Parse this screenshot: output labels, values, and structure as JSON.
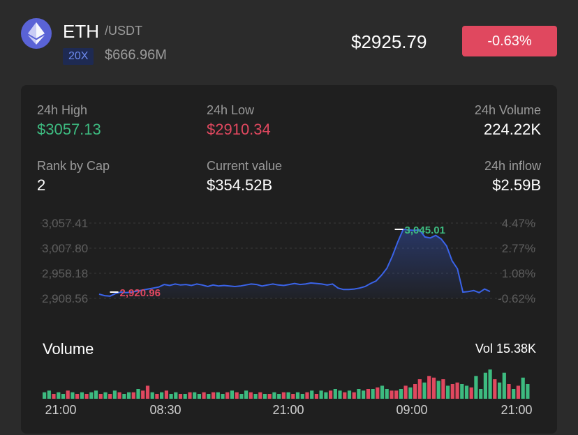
{
  "header": {
    "symbol": "ETH",
    "quote": "/USDT",
    "leverage": "20X",
    "market_cap": "$666.96M",
    "price": "$2925.79",
    "change": "-0.63%",
    "icon": "ethereum-icon"
  },
  "stats": {
    "high_label": "24h High",
    "high_value": "$3057.13",
    "low_label": "24h Low",
    "low_value": "$2910.34",
    "volume_label": "24h Volume",
    "volume_value": "224.22K",
    "rank_label": "Rank by Cap",
    "rank_value": "2",
    "current_label": "Current value",
    "current_value": "$354.52B",
    "inflow_label": "24h inflow",
    "inflow_value": "$2.59B"
  },
  "colors": {
    "up": "#3dbb80",
    "down": "#e0485f",
    "line": "#3a63e8",
    "leverage_bg": "#1e2a52"
  },
  "chart_data": [
    {
      "type": "area",
      "y_ticks_left": [
        "3,057.41",
        "3,007.80",
        "2,958.18",
        "2,908.56"
      ],
      "y_ticks_right": [
        "4.47%",
        "2.77%",
        "1.08%",
        "-0.62%"
      ],
      "ylim": [
        2908.56,
        3057.41
      ],
      "max_label": "3,045.01",
      "min_label": "2,920.96",
      "y": [
        2917,
        2914,
        2913,
        2918,
        2921,
        2920,
        2921,
        2923,
        2925,
        2927,
        2929,
        2931,
        2936,
        2934,
        2937,
        2935,
        2936,
        2934,
        2937,
        2935,
        2932,
        2935,
        2933,
        2934,
        2933,
        2932,
        2933,
        2935,
        2937,
        2936,
        2933,
        2935,
        2937,
        2935,
        2934,
        2936,
        2938,
        2936,
        2937,
        2939,
        2938,
        2937,
        2935,
        2937,
        2929,
        2926,
        2926,
        2927,
        2929,
        2932,
        2938,
        2943,
        2954,
        2968,
        2992,
        3020,
        3045,
        3044,
        3043,
        3044,
        3030,
        3028,
        3033,
        3026,
        3012,
        2983,
        2967,
        2921,
        2922,
        2924,
        2920,
        2927,
        2922
      ]
    },
    {
      "type": "bar",
      "title": "Volume",
      "total_label": "Vol 15.38K",
      "x_tick_labels": [
        "21:00",
        "08:30",
        "21:00",
        "09:00",
        "21:00"
      ],
      "values": [
        4,
        5,
        3,
        4,
        3,
        5,
        4,
        3,
        4,
        3,
        4,
        5,
        3,
        4,
        3,
        5,
        4,
        3,
        4,
        4,
        6,
        5,
        8,
        4,
        3,
        4,
        5,
        3,
        4,
        3,
        3,
        4,
        4,
        3,
        4,
        3,
        4,
        4,
        3,
        4,
        5,
        4,
        3,
        5,
        4,
        3,
        4,
        3,
        3,
        4,
        3,
        4,
        4,
        3,
        4,
        3,
        4,
        5,
        3,
        5,
        4,
        5,
        6,
        5,
        4,
        5,
        4,
        6,
        5,
        6,
        6,
        7,
        8,
        6,
        5,
        5,
        6,
        8,
        7,
        9,
        12,
        10,
        14,
        13,
        11,
        12,
        8,
        9,
        10,
        9,
        8,
        7,
        14,
        6,
        16,
        18,
        12,
        10,
        16,
        9,
        6,
        8,
        13,
        9
      ],
      "colors": [
        "up",
        "up",
        "down",
        "up",
        "up",
        "down",
        "up",
        "down",
        "up",
        "down",
        "up",
        "up",
        "down",
        "up",
        "down",
        "up",
        "down",
        "up",
        "up",
        "down",
        "up",
        "down",
        "down",
        "up",
        "down",
        "up",
        "down",
        "up",
        "up",
        "down",
        "up",
        "down",
        "up",
        "up",
        "down",
        "up",
        "down",
        "up",
        "up",
        "down",
        "up",
        "down",
        "up",
        "up",
        "down",
        "up",
        "down",
        "up",
        "down",
        "up",
        "up",
        "down",
        "up",
        "down",
        "up",
        "up",
        "down",
        "up",
        "down",
        "up",
        "up",
        "down",
        "up",
        "up",
        "down",
        "up",
        "down",
        "up",
        "up",
        "down",
        "up",
        "down",
        "up",
        "up",
        "down",
        "down",
        "up",
        "down",
        "up",
        "down",
        "down",
        "up",
        "down",
        "down",
        "up",
        "down",
        "up",
        "down",
        "down",
        "up",
        "up",
        "down",
        "up",
        "up",
        "up",
        "up",
        "down",
        "up",
        "up",
        "down",
        "up",
        "down",
        "up",
        "up"
      ]
    }
  ]
}
